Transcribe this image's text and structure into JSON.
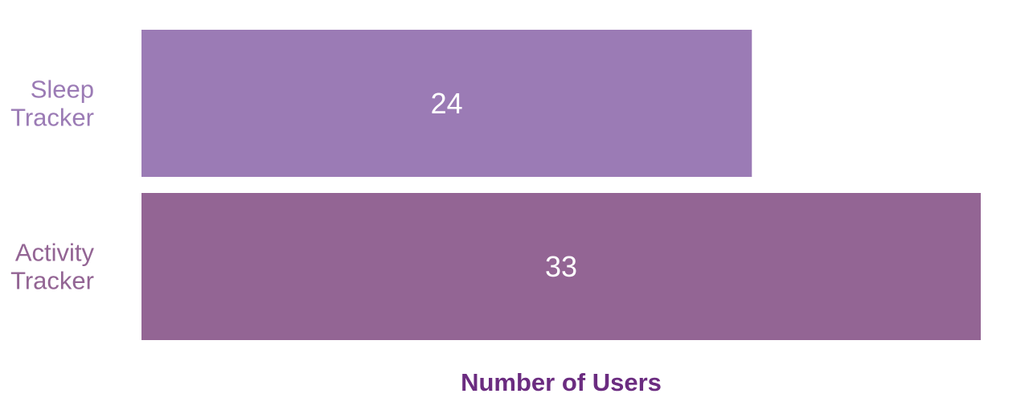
{
  "chart_data": {
    "type": "bar",
    "orientation": "horizontal",
    "categories": [
      [
        "Sleep",
        "Tracker"
      ],
      [
        "Activity",
        "Tracker"
      ]
    ],
    "values": [
      24,
      33
    ],
    "colors": [
      "#9b7bb5",
      "#936594"
    ],
    "xlabel": "Number of Users",
    "xlabel_color": "#6b2c80",
    "xlim": [
      0,
      33
    ],
    "grid": false,
    "legend": false
  }
}
